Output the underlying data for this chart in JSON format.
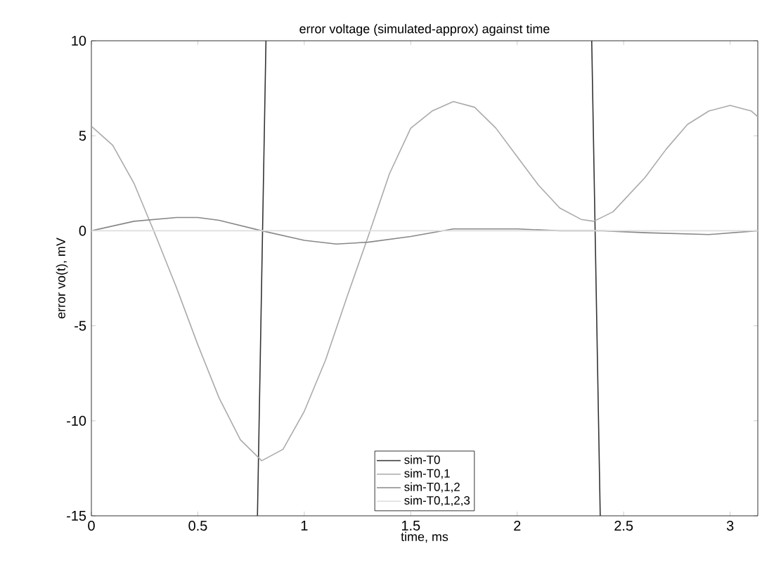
{
  "chart_data": {
    "type": "line",
    "title": "error voltage (simulated-approx) against time",
    "xlabel": "time, ms",
    "ylabel": "error vo(t), mV",
    "xlim": [
      0,
      3.13
    ],
    "ylim": [
      -15,
      10
    ],
    "xticks": [
      0,
      0.5,
      1,
      1.5,
      2,
      2.5,
      3
    ],
    "yticks": [
      -15,
      -10,
      -5,
      0,
      5,
      10
    ],
    "legend": "bottom",
    "marker": "none",
    "line_style": "solid",
    "series": [
      {
        "name": "sim-T0",
        "color": "#333333",
        "x": [
          0.82,
          0.78,
          1.5,
          2.35,
          2.39
        ],
        "values": [
          10,
          -15,
          null,
          10,
          -15
        ]
      },
      {
        "name": "sim-T0,1",
        "color": "#aaaaaa",
        "x": [
          0,
          0.1,
          0.2,
          0.3,
          0.4,
          0.5,
          0.6,
          0.7,
          0.8,
          0.9,
          1.0,
          1.1,
          1.2,
          1.3,
          1.4,
          1.5,
          1.6,
          1.7,
          1.8,
          1.9,
          2.0,
          2.1,
          2.2,
          2.3,
          2.36,
          2.45,
          2.6,
          2.7,
          2.8,
          2.9,
          3.0,
          3.1,
          3.13
        ],
        "values": [
          5.5,
          4.5,
          2.5,
          -0.2,
          -3,
          -6,
          -8.8,
          -11,
          -12.1,
          -11.5,
          -9.5,
          -6.8,
          -3.5,
          -0.3,
          3,
          5.4,
          6.3,
          6.8,
          6.5,
          5.4,
          3.9,
          2.4,
          1.2,
          0.6,
          0.5,
          1.0,
          2.8,
          4.3,
          5.6,
          6.3,
          6.6,
          6.3,
          6.0
        ]
      },
      {
        "name": "sim-T0,1,2",
        "color": "#888888",
        "x": [
          0,
          0.2,
          0.4,
          0.5,
          0.6,
          0.8,
          1.0,
          1.15,
          1.3,
          1.5,
          1.7,
          2.0,
          2.2,
          2.4,
          2.6,
          2.9,
          3.13
        ],
        "values": [
          0,
          0.5,
          0.7,
          0.7,
          0.55,
          0,
          -0.5,
          -0.7,
          -0.6,
          -0.3,
          0.1,
          0.1,
          0,
          0,
          -0.1,
          -0.2,
          0
        ]
      },
      {
        "name": "sim-T0,1,2,3",
        "color": "#dddddd",
        "x": [
          0,
          1,
          2,
          3.13
        ],
        "values": [
          0,
          0,
          0,
          0
        ]
      }
    ]
  }
}
